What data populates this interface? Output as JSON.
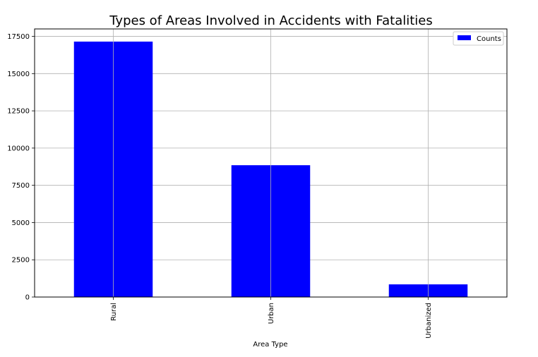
{
  "chart_data": {
    "type": "bar",
    "title": "Types of Areas Involved in Accidents with Fatalities",
    "xlabel": "Area Type",
    "ylabel": "",
    "categories": [
      "Rural",
      "Urban",
      "Urbanized"
    ],
    "series": [
      {
        "name": "Counts",
        "values": [
          17150,
          8850,
          850
        ]
      }
    ],
    "ylim": [
      0,
      18000
    ],
    "yticks": [
      0,
      2500,
      5000,
      7500,
      10000,
      12500,
      15000,
      17500
    ],
    "ytick_labels": [
      "0",
      "2500",
      "5000",
      "7500",
      "10000",
      "12500",
      "15000",
      "17500"
    ],
    "grid": true,
    "legend_position": "top-right",
    "bar_color": "#0000ff"
  }
}
